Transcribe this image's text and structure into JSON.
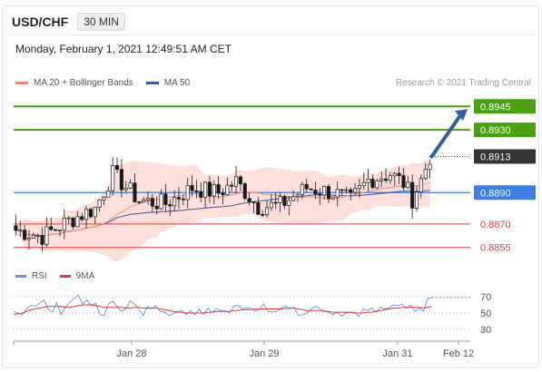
{
  "header": {
    "pair": "USD/CHF",
    "interval": "30 MIN"
  },
  "timestamp": "Monday, February 1, 2021 12:49:51 AM CET",
  "legend": {
    "ma20": "MA 20 + Bollinger Bands",
    "ma50": "MA 50"
  },
  "credit": "Research © 2021 Trading Central",
  "rsi_legend": {
    "rsi": "RSI",
    "ma9": "9MA"
  },
  "colors": {
    "candle": "#1a1a1a",
    "bollinger_fill": "#ffd9d4",
    "ma20": "#f08a80",
    "ma50": "#3a5a99",
    "resistance": "#4aa10e",
    "pivot": "#3d7ee0",
    "support": "#e23a3a",
    "arrow": "#2e5f9e",
    "last_price": "#333333",
    "rsi": "#6b8fd8",
    "rsi_ma": "#e23a3a"
  },
  "chart_data": [
    {
      "type": "candlestick",
      "title": "USD/CHF",
      "x_axis_labels": [
        "Jan 28",
        "Jan 29",
        "Jan 31",
        "Feb 12"
      ],
      "ylim": [
        0.8845,
        0.8955
      ],
      "levels": [
        {
          "price": 0.8945,
          "label": "0.8945",
          "kind": "resistance"
        },
        {
          "price": 0.893,
          "label": "0.8930",
          "kind": "resistance"
        },
        {
          "price": 0.8913,
          "label": "0.8913",
          "kind": "last_price"
        },
        {
          "price": 0.889,
          "label": "0.8890",
          "kind": "pivot"
        },
        {
          "price": 0.887,
          "label": "0.8870",
          "kind": "support"
        },
        {
          "price": 0.8855,
          "label": "0.8855",
          "kind": "support"
        }
      ],
      "series_shown": [
        "MA 20 + Bollinger Bands",
        "MA 50"
      ],
      "last_price": 0.8913,
      "projection_target": 0.8945
    },
    {
      "type": "line",
      "title": "RSI",
      "y_ticks": [
        70,
        50,
        30
      ],
      "ylim": [
        20,
        80
      ],
      "series": [
        {
          "name": "RSI",
          "values": [
            52,
            50,
            48,
            55,
            60,
            58,
            62,
            66,
            55,
            51,
            63,
            48,
            57,
            63,
            68,
            72,
            61,
            66,
            59,
            62,
            48,
            47,
            62,
            64,
            58,
            52,
            55,
            65,
            61,
            55,
            47,
            58,
            55,
            59,
            52,
            51,
            47,
            49,
            52,
            53,
            48,
            53,
            48,
            55,
            48,
            56,
            51,
            55,
            53,
            53,
            50,
            58,
            60,
            55,
            56,
            56,
            52,
            55,
            61,
            52,
            51,
            52,
            56,
            59,
            55,
            57,
            47,
            48,
            50,
            55,
            58,
            55,
            53,
            51,
            48,
            51,
            46,
            50,
            51,
            51,
            46,
            55,
            53,
            56,
            51,
            57,
            55,
            56,
            60,
            59,
            61,
            56,
            60,
            52,
            56,
            52,
            68,
            69
          ]
        },
        {
          "name": "9MA",
          "values": [
            48,
            49,
            50,
            52,
            54,
            55,
            56,
            57,
            58,
            58,
            58,
            58,
            57,
            57,
            58,
            59,
            60,
            60,
            60,
            59,
            58,
            57,
            57,
            57,
            57,
            57,
            56,
            56,
            57,
            57,
            56,
            56,
            56,
            56,
            55,
            54,
            53,
            52,
            51,
            51,
            50,
            50,
            50,
            50,
            50,
            51,
            51,
            52,
            52,
            52,
            52,
            53,
            53,
            54,
            54,
            54,
            55,
            55,
            55,
            55,
            55,
            55,
            55,
            56,
            56,
            56,
            55,
            54,
            53,
            53,
            53,
            53,
            52,
            52,
            51,
            51,
            51,
            51,
            51,
            50,
            50,
            50,
            51,
            51,
            52,
            53,
            54,
            55,
            56,
            56,
            57,
            57,
            57,
            57,
            57,
            56,
            57,
            58
          ]
        }
      ]
    }
  ]
}
